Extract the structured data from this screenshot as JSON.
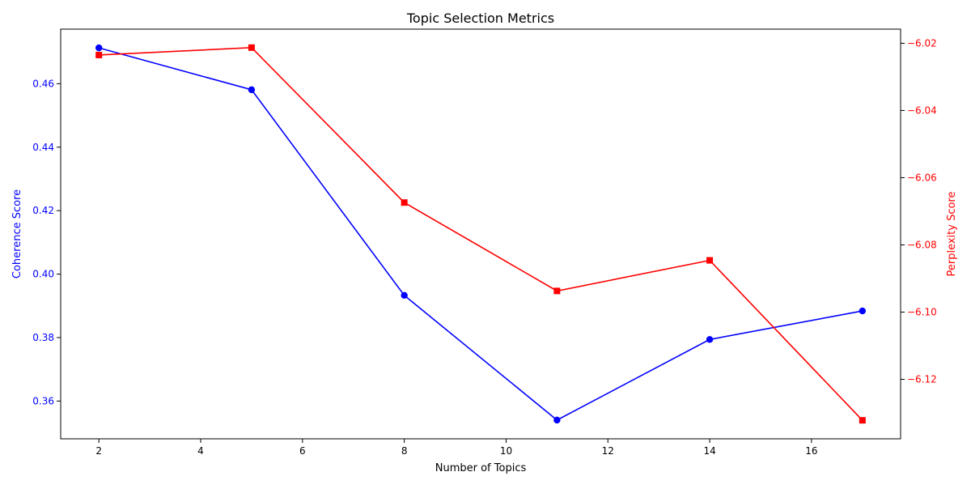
{
  "chart_data": {
    "type": "line",
    "title": "Topic Selection Metrics",
    "xlabel": "Number of Topics",
    "x": [
      2,
      5,
      8,
      11,
      14,
      17
    ],
    "xlim": [
      1.25,
      17.75
    ],
    "xticks": [
      2,
      4,
      6,
      8,
      10,
      12,
      14,
      16
    ],
    "grid": false,
    "series": [
      {
        "axis": "left",
        "ylabel": "Coherence Score",
        "color": "#0000ff",
        "marker": "circle",
        "values": [
          0.4713,
          0.4581,
          0.3933,
          0.354,
          0.3794,
          0.3884
        ],
        "ylim": [
          0.3481,
          0.4772
        ],
        "yticks": [
          0.36,
          0.38,
          0.4,
          0.42,
          0.44,
          0.46
        ],
        "tick_format_decimals": 2
      },
      {
        "axis": "right",
        "ylabel": "Perplexity Score",
        "color": "#ff0000",
        "marker": "square",
        "values": [
          -6.0235,
          -6.0213,
          -6.0674,
          -6.0937,
          -6.0846,
          -6.1322
        ],
        "ylim": [
          -6.1377,
          -6.0158
        ],
        "yticks": [
          -6.12,
          -6.1,
          -6.08,
          -6.06,
          -6.04,
          -6.02
        ],
        "tick_format_decimals": 2
      }
    ]
  }
}
